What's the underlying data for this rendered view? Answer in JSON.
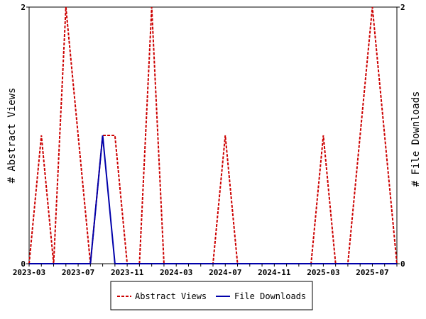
{
  "chart_data": {
    "type": "line",
    "x": [
      "2023-03",
      "2023-04",
      "2023-05",
      "2023-06",
      "2023-07",
      "2023-08",
      "2023-09",
      "2023-10",
      "2023-11",
      "2023-12",
      "2024-01",
      "2024-02",
      "2024-03",
      "2024-04",
      "2024-05",
      "2024-06",
      "2024-07",
      "2024-08",
      "2024-09",
      "2024-10",
      "2024-11",
      "2024-12",
      "2025-01",
      "2025-02",
      "2025-03",
      "2025-04",
      "2025-05",
      "2025-06",
      "2025-07",
      "2025-08",
      "2025-09"
    ],
    "x_tick_labels": [
      "2023-03",
      "2023-07",
      "2023-11",
      "2024-03",
      "2024-07",
      "2024-11",
      "2025-03",
      "2025-07"
    ],
    "series": [
      {
        "name": "Abstract Views",
        "axis": "left",
        "color": "#cc0000",
        "dash": "dashed",
        "values": [
          0,
          1,
          0,
          2,
          1,
          0,
          1,
          1,
          0,
          0,
          2,
          0,
          0,
          0,
          0,
          0,
          1,
          0,
          0,
          0,
          0,
          0,
          0,
          0,
          1,
          0,
          0,
          1,
          2,
          1,
          0
        ]
      },
      {
        "name": "File Downloads",
        "axis": "right",
        "color": "#0000aa",
        "dash": "solid",
        "values": [
          0,
          0,
          0,
          0,
          0,
          0,
          1,
          0,
          0,
          0,
          0,
          0,
          0,
          0,
          0,
          0,
          0,
          0,
          0,
          0,
          0,
          0,
          0,
          0,
          0,
          0,
          0,
          0,
          0,
          0,
          0
        ]
      }
    ],
    "ylabel_left": "# Abstract Views",
    "ylabel_right": "# File Downloads",
    "ylim_left": [
      0,
      2
    ],
    "ylim_right": [
      0,
      2
    ],
    "y_ticks": [
      0,
      2
    ],
    "grid": false,
    "legend_position": "bottom-center"
  }
}
